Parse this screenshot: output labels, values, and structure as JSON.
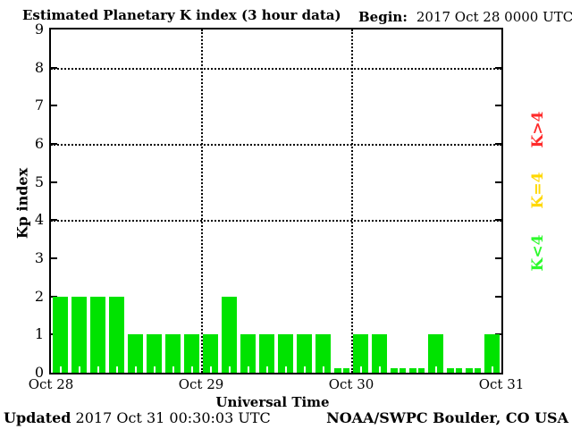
{
  "header": {
    "title": "Estimated Planetary K index (3 hour data)",
    "begin_label": "Begin:",
    "begin_value": "2017 Oct 28 0000 UTC"
  },
  "footer": {
    "updated_label": "Updated",
    "updated_value": "2017 Oct 31 00:30:03 UTC",
    "credit": "NOAA/SWPC Boulder, CO USA"
  },
  "legend": {
    "items": [
      {
        "label": "K>4",
        "color": "#ff2a2a"
      },
      {
        "label": "K=4",
        "color": "#ffd800"
      },
      {
        "label": "K<4",
        "color": "#2dfa2d"
      }
    ]
  },
  "chart_data": {
    "type": "bar",
    "title": "Estimated Planetary K index (3 hour data)",
    "xlabel": "Universal Time",
    "ylabel": "Kp index",
    "ylim": [
      0,
      9
    ],
    "y_ticks": [
      0,
      1,
      2,
      3,
      4,
      5,
      6,
      7,
      8,
      9
    ],
    "gridlines_y": [
      4,
      6,
      8
    ],
    "grid": "dotted",
    "x_day_labels": [
      "Oct 28",
      "Oct 29",
      "Oct 30",
      "Oct 31"
    ],
    "interval_hours": 3,
    "bars_per_day": 8,
    "bar_color": "#00e300",
    "values": [
      2,
      2,
      2,
      2,
      1,
      1,
      1,
      1,
      1,
      2,
      1,
      1,
      1,
      1,
      1,
      0,
      1,
      1,
      0,
      0,
      1,
      0,
      0,
      1
    ]
  }
}
